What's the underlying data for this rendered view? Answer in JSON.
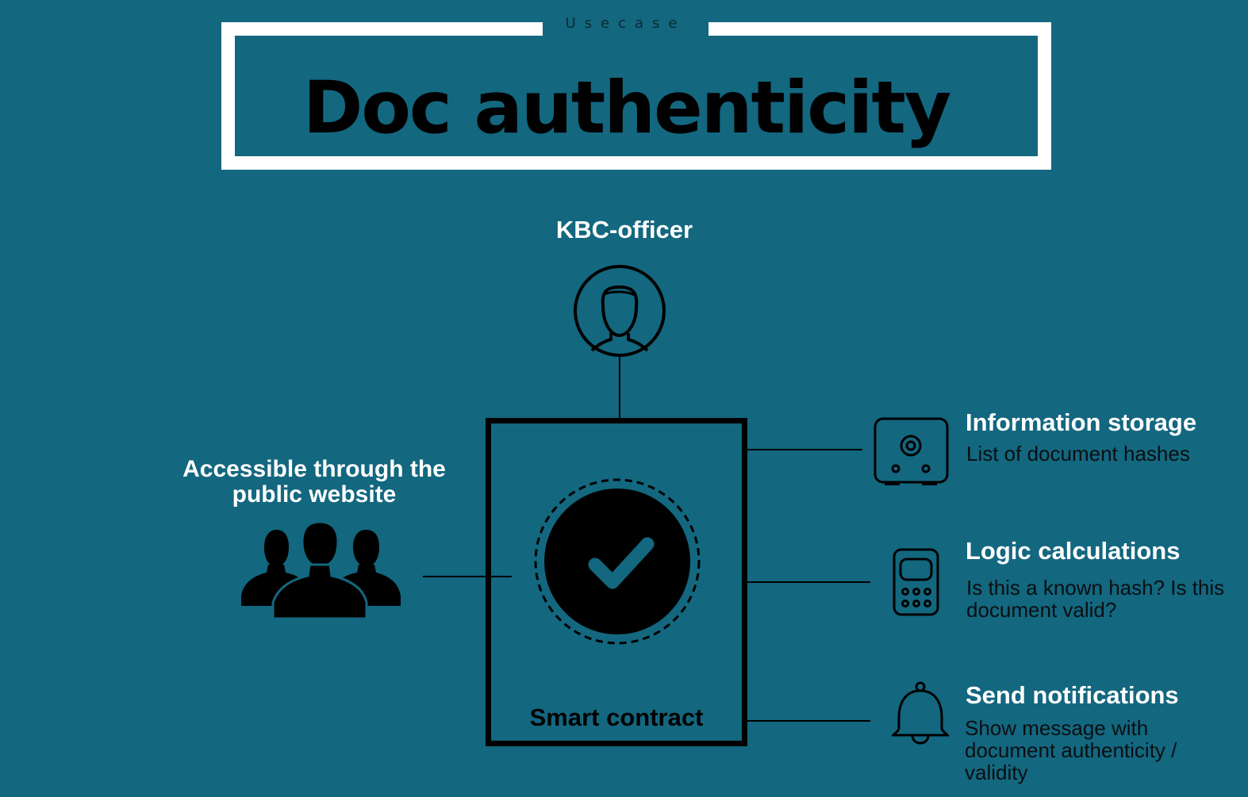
{
  "header": {
    "tag": "Usecase",
    "title": "Doc authenticity"
  },
  "actors": {
    "officer": "KBC-officer",
    "public": "Accessible through the public website"
  },
  "contract": {
    "label": "Smart contract"
  },
  "features": [
    {
      "title": "Information storage",
      "description": "List of document hashes",
      "icon": "safe-icon"
    },
    {
      "title": "Logic calculations",
      "description": "Is this a known hash? Is this document valid?",
      "icon": "calculator-icon"
    },
    {
      "title": "Send notifications",
      "description": "Show message with document authenticity / validity",
      "icon": "bell-icon"
    }
  ],
  "colors": {
    "background": "#13677f",
    "frame": "#ffffff",
    "ink": "#000000"
  }
}
